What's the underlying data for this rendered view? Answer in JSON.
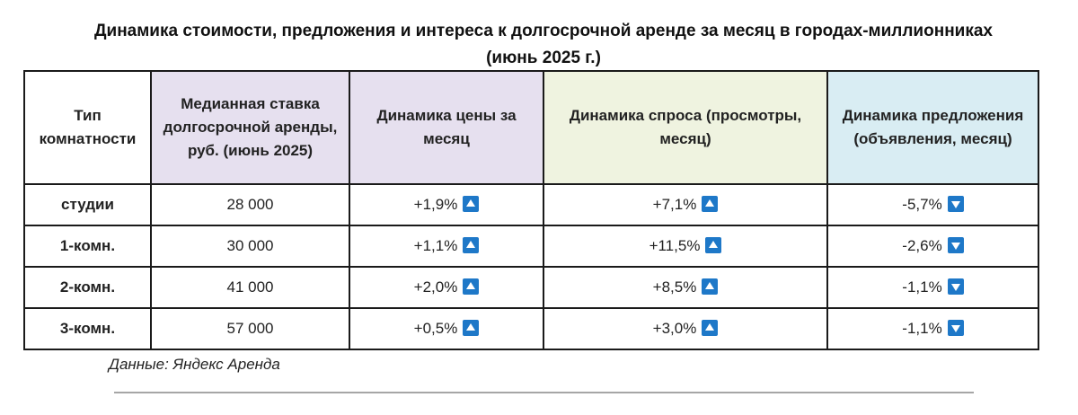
{
  "title": "Динамика стоимости, предложения и интереса к долгосрочной аренде за месяц в городах-миллионниках (июнь 2025 г.)",
  "columns": [
    {
      "label": "Тип комнатности",
      "bg": "#ffffff"
    },
    {
      "label": "Медианная ставка долгосрочной аренды, руб. (июнь 2025)",
      "bg": "#e6e0ef"
    },
    {
      "label": "Динамика цены за месяц",
      "bg": "#e6e0ef"
    },
    {
      "label": "Динамика спроса (просмотры, месяц)",
      "bg": "#eff3e0"
    },
    {
      "label": "Динамика предложения (объявления, месяц)",
      "bg": "#d9edf3"
    }
  ],
  "rows": [
    {
      "type": "студии",
      "rate": "28 000",
      "price": "+1,9%",
      "price_dir": "up",
      "demand": "+7,1%",
      "demand_dir": "up",
      "supply": "-5,7%",
      "supply_dir": "down"
    },
    {
      "type": "1-комн.",
      "rate": "30 000",
      "price": "+1,1%",
      "price_dir": "up",
      "demand": "+11,5%",
      "demand_dir": "up",
      "supply": "-2,6%",
      "supply_dir": "down"
    },
    {
      "type": "2-комн.",
      "rate": "41 000",
      "price": "+2,0%",
      "price_dir": "up",
      "demand": "+8,5%",
      "demand_dir": "up",
      "supply": "-1,1%",
      "supply_dir": "down"
    },
    {
      "type": "3-комн.",
      "rate": "57 000",
      "price": "+0,5%",
      "price_dir": "up",
      "demand": "+3,0%",
      "demand_dir": "up",
      "supply": "-1,1%",
      "supply_dir": "down"
    }
  ],
  "arrow_color": "#1e78c8",
  "source": "Данные: Яндекс Аренда"
}
